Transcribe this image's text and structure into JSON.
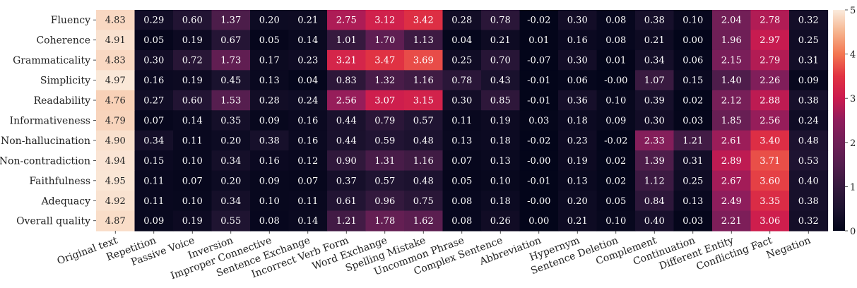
{
  "chart_data": {
    "type": "heatmap",
    "title": "",
    "xlabel": "",
    "ylabel": "",
    "rows": [
      "Fluency",
      "Coherence",
      "Grammaticality",
      "Simplicity",
      "Readability",
      "Informativeness",
      "Non-hallucination",
      "Non-contradiction",
      "Faithfulness",
      "Adequacy",
      "Overall quality"
    ],
    "columns": [
      "Original text",
      "Repetition",
      "Passive Voice",
      "Inversion",
      "Improper Connective",
      "Sentence Exchange",
      "Incorrect Verb Form",
      "Word Exchange",
      "Spelling Mistake",
      "Uncommon Phrase",
      "Complex Sentence",
      "Abbreviation",
      "Hypernym",
      "Sentence Deletion",
      "Complement",
      "Continuation",
      "Different Entity",
      "Conflicting Fact",
      "Negation"
    ],
    "values": [
      [
        4.83,
        0.29,
        0.6,
        1.37,
        0.2,
        0.21,
        2.75,
        3.12,
        3.42,
        0.28,
        0.78,
        -0.02,
        0.3,
        0.08,
        0.38,
        0.1,
        2.04,
        2.78,
        0.32
      ],
      [
        4.91,
        0.05,
        0.19,
        0.67,
        0.05,
        0.14,
        1.01,
        1.7,
        1.13,
        0.04,
        0.21,
        0.01,
        0.16,
        0.08,
        0.21,
        0.0,
        1.96,
        2.97,
        0.25
      ],
      [
        4.83,
        0.3,
        0.72,
        1.73,
        0.17,
        0.23,
        3.21,
        3.47,
        3.69,
        0.25,
        0.7,
        -0.07,
        0.3,
        0.01,
        0.34,
        0.06,
        2.15,
        2.79,
        0.31
      ],
      [
        4.97,
        0.16,
        0.19,
        0.45,
        0.13,
        0.04,
        0.83,
        1.32,
        1.16,
        0.78,
        0.43,
        -0.01,
        0.06,
        -0.0,
        1.07,
        0.15,
        1.4,
        2.26,
        0.09
      ],
      [
        4.76,
        0.27,
        0.6,
        1.53,
        0.28,
        0.24,
        2.56,
        3.07,
        3.15,
        0.3,
        0.85,
        -0.01,
        0.36,
        0.1,
        0.39,
        0.02,
        2.12,
        2.88,
        0.38
      ],
      [
        4.79,
        0.07,
        0.14,
        0.35,
        0.09,
        0.16,
        0.44,
        0.79,
        0.57,
        0.11,
        0.19,
        0.03,
        0.18,
        0.09,
        0.3,
        0.03,
        1.85,
        2.56,
        0.24
      ],
      [
        4.9,
        0.34,
        0.11,
        0.2,
        0.38,
        0.16,
        0.44,
        0.59,
        0.48,
        0.13,
        0.18,
        -0.02,
        0.23,
        -0.02,
        2.33,
        1.21,
        2.61,
        3.4,
        0.48
      ],
      [
        4.94,
        0.15,
        0.1,
        0.34,
        0.16,
        0.12,
        0.9,
        1.31,
        1.16,
        0.07,
        0.13,
        -0.0,
        0.19,
        0.02,
        1.39,
        0.31,
        2.89,
        3.71,
        0.53
      ],
      [
        4.95,
        0.11,
        0.07,
        0.2,
        0.09,
        0.07,
        0.37,
        0.57,
        0.48,
        0.05,
        0.1,
        -0.01,
        0.13,
        0.02,
        1.12,
        0.25,
        2.67,
        3.6,
        0.4
      ],
      [
        4.92,
        0.11,
        0.1,
        0.34,
        0.1,
        0.11,
        0.61,
        0.96,
        0.75,
        0.08,
        0.18,
        -0.0,
        0.2,
        0.05,
        0.84,
        0.13,
        2.49,
        3.35,
        0.38
      ],
      [
        4.87,
        0.09,
        0.19,
        0.55,
        0.08,
        0.14,
        1.21,
        1.78,
        1.62,
        0.08,
        0.26,
        0.0,
        0.21,
        0.1,
        0.4,
        0.03,
        2.21,
        3.06,
        0.32
      ]
    ],
    "value_labels": [
      [
        "4.83",
        "0.29",
        "0.60",
        "1.37",
        "0.20",
        "0.21",
        "2.75",
        "3.12",
        "3.42",
        "0.28",
        "0.78",
        "-0.02",
        "0.30",
        "0.08",
        "0.38",
        "0.10",
        "2.04",
        "2.78",
        "0.32"
      ],
      [
        "4.91",
        "0.05",
        "0.19",
        "0.67",
        "0.05",
        "0.14",
        "1.01",
        "1.70",
        "1.13",
        "0.04",
        "0.21",
        "0.01",
        "0.16",
        "0.08",
        "0.21",
        "0.00",
        "1.96",
        "2.97",
        "0.25"
      ],
      [
        "4.83",
        "0.30",
        "0.72",
        "1.73",
        "0.17",
        "0.23",
        "3.21",
        "3.47",
        "3.69",
        "0.25",
        "0.70",
        "-0.07",
        "0.30",
        "0.01",
        "0.34",
        "0.06",
        "2.15",
        "2.79",
        "0.31"
      ],
      [
        "4.97",
        "0.16",
        "0.19",
        "0.45",
        "0.13",
        "0.04",
        "0.83",
        "1.32",
        "1.16",
        "0.78",
        "0.43",
        "-0.01",
        "0.06",
        "-0.00",
        "1.07",
        "0.15",
        "1.40",
        "2.26",
        "0.09"
      ],
      [
        "4.76",
        "0.27",
        "0.60",
        "1.53",
        "0.28",
        "0.24",
        "2.56",
        "3.07",
        "3.15",
        "0.30",
        "0.85",
        "-0.01",
        "0.36",
        "0.10",
        "0.39",
        "0.02",
        "2.12",
        "2.88",
        "0.38"
      ],
      [
        "4.79",
        "0.07",
        "0.14",
        "0.35",
        "0.09",
        "0.16",
        "0.44",
        "0.79",
        "0.57",
        "0.11",
        "0.19",
        "0.03",
        "0.18",
        "0.09",
        "0.30",
        "0.03",
        "1.85",
        "2.56",
        "0.24"
      ],
      [
        "4.90",
        "0.34",
        "0.11",
        "0.20",
        "0.38",
        "0.16",
        "0.44",
        "0.59",
        "0.48",
        "0.13",
        "0.18",
        "-0.02",
        "0.23",
        "-0.02",
        "2.33",
        "1.21",
        "2.61",
        "3.40",
        "0.48"
      ],
      [
        "4.94",
        "0.15",
        "0.10",
        "0.34",
        "0.16",
        "0.12",
        "0.90",
        "1.31",
        "1.16",
        "0.07",
        "0.13",
        "-0.00",
        "0.19",
        "0.02",
        "1.39",
        "0.31",
        "2.89",
        "3.71",
        "0.53"
      ],
      [
        "4.95",
        "0.11",
        "0.07",
        "0.20",
        "0.09",
        "0.07",
        "0.37",
        "0.57",
        "0.48",
        "0.05",
        "0.10",
        "-0.01",
        "0.13",
        "0.02",
        "1.12",
        "0.25",
        "2.67",
        "3.60",
        "0.40"
      ],
      [
        "4.92",
        "0.11",
        "0.10",
        "0.34",
        "0.10",
        "0.11",
        "0.61",
        "0.96",
        "0.75",
        "0.08",
        "0.18",
        "-0.00",
        "0.20",
        "0.05",
        "0.84",
        "0.13",
        "2.49",
        "3.35",
        "0.38"
      ],
      [
        "4.87",
        "0.09",
        "0.19",
        "0.55",
        "0.08",
        "0.14",
        "1.21",
        "1.78",
        "1.62",
        "0.08",
        "0.26",
        "0.00",
        "0.21",
        "0.10",
        "0.40",
        "0.03",
        "2.21",
        "3.06",
        "0.32"
      ]
    ],
    "colorbar": {
      "min": 0,
      "max": 5,
      "ticks": [
        "0",
        "1",
        "2",
        "3",
        "4",
        "5"
      ]
    },
    "colormap": "rocket",
    "annotations": "cell values shown",
    "grid": false,
    "legend": "colorbar-right"
  }
}
